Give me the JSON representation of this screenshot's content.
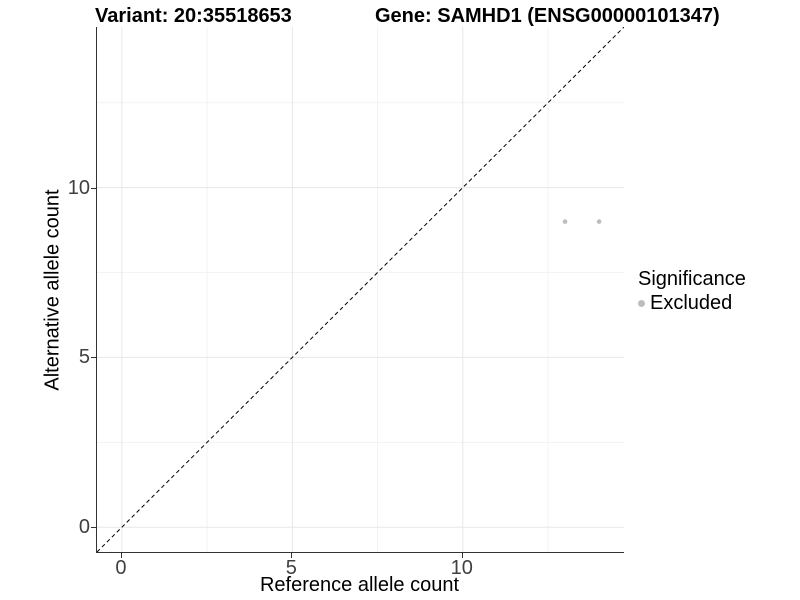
{
  "header": {
    "variant_title": "Variant: 20:35518653",
    "gene_title": "Gene: SAMHD1 (ENSG00000101347)"
  },
  "chart_data": {
    "type": "scatter",
    "title": "Variant: 20:35518653 — Gene: SAMHD1 (ENSG00000101347)",
    "xlabel": "Reference allele count",
    "ylabel": "Alternative allele count",
    "xlim": [
      -0.73,
      14.73
    ],
    "ylim": [
      -0.73,
      14.73
    ],
    "x_ticks": [
      0,
      5,
      10
    ],
    "y_ticks": [
      0,
      5,
      10
    ],
    "x_minor_ticks": [
      2.5,
      7.5,
      12.5
    ],
    "y_minor_ticks": [
      2.5,
      7.5,
      12.5
    ],
    "grid": true,
    "identity_line": {
      "slope": 1,
      "intercept": 0,
      "style": "dashed",
      "color": "#000000"
    },
    "series": [
      {
        "name": "Excluded",
        "color": "#bdbdbd",
        "points": [
          {
            "x": 13,
            "y": 9
          },
          {
            "x": 14,
            "y": 9
          }
        ]
      }
    ],
    "legend": {
      "title": "Significance",
      "position": "right",
      "entries": [
        {
          "label": "Excluded",
          "color": "#bdbdbd"
        }
      ]
    },
    "colors": {
      "grid_major": "#e7e7e7",
      "grid_minor": "#f3f3f3",
      "axis_line": "#333333",
      "tick_label": "#404040",
      "point": "#bdbdbd"
    }
  }
}
